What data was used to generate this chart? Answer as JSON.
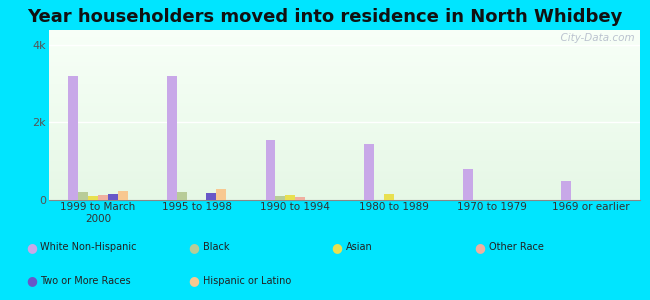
{
  "title": "Year householders moved into residence in North Whidbey",
  "categories": [
    "1999 to March\n2000",
    "1995 to 1998",
    "1990 to 1994",
    "1980 to 1989",
    "1970 to 1979",
    "1969 or earlier"
  ],
  "series": {
    "White Non-Hispanic": [
      3200,
      3200,
      1550,
      1450,
      800,
      480
    ],
    "Black": [
      200,
      200,
      80,
      0,
      0,
      0
    ],
    "Asian": [
      100,
      0,
      120,
      140,
      0,
      0
    ],
    "Other Race": [
      120,
      0,
      60,
      0,
      0,
      0
    ],
    "Two or More Races": [
      140,
      180,
      0,
      0,
      0,
      0
    ],
    "Hispanic or Latino": [
      220,
      280,
      0,
      0,
      0,
      0
    ]
  },
  "colors": {
    "White Non-Hispanic": "#c8a8e8",
    "Black": "#b8cc98",
    "Asian": "#e8e050",
    "Other Race": "#f0b0a0",
    "Two or More Races": "#6858c8",
    "Hispanic or Latino": "#f8c890"
  },
  "bar_width": 0.1,
  "ylim": [
    0,
    4400
  ],
  "yticks": [
    0,
    2000,
    4000
  ],
  "ytick_labels": [
    "0",
    "2k",
    "4k"
  ],
  "outer_background": "#00e5ff",
  "plot_bg_top": "#e8f5e8",
  "plot_bg_bottom": "#f8fff8",
  "watermark": "  City-Data.com",
  "title_fontsize": 13,
  "legend": [
    {
      "label": "White Non-Hispanic",
      "color": "#c8a8e8"
    },
    {
      "label": "Black",
      "color": "#b8cc98"
    },
    {
      "label": "Asian",
      "color": "#e8e050"
    },
    {
      "label": "Other Race",
      "color": "#f0b0a0"
    },
    {
      "label": "Two or More Races",
      "color": "#6858c8"
    },
    {
      "label": "Hispanic or Latino",
      "color": "#f8c890"
    }
  ]
}
